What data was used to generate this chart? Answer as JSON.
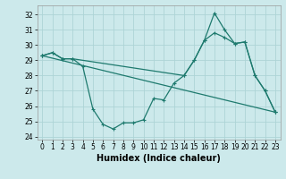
{
  "xlabel": "Humidex (Indice chaleur)",
  "bg_color": "#cce9eb",
  "grid_color": "#add4d6",
  "line_color": "#1e7a6e",
  "xlim": [
    -0.5,
    23.5
  ],
  "ylim": [
    23.8,
    32.6
  ],
  "yticks": [
    24,
    25,
    26,
    27,
    28,
    29,
    30,
    31,
    32
  ],
  "xticks": [
    0,
    1,
    2,
    3,
    4,
    5,
    6,
    7,
    8,
    9,
    10,
    11,
    12,
    13,
    14,
    15,
    16,
    17,
    18,
    19,
    20,
    21,
    22,
    23
  ],
  "series1_x": [
    0,
    1,
    2,
    3,
    4,
    5,
    6,
    7,
    8,
    9,
    10,
    11,
    12,
    13,
    14,
    15,
    16,
    17,
    18,
    19,
    20,
    21,
    22,
    23
  ],
  "series1_y": [
    29.3,
    29.5,
    29.1,
    29.1,
    28.6,
    25.8,
    24.8,
    24.5,
    24.9,
    24.9,
    25.1,
    26.5,
    26.4,
    27.5,
    28.0,
    29.0,
    30.3,
    30.8,
    30.5,
    30.1,
    30.2,
    28.0,
    27.0,
    25.6
  ],
  "series2_x": [
    0,
    1,
    2,
    3,
    14,
    15,
    16,
    17,
    18,
    19,
    20,
    21,
    22,
    23
  ],
  "series2_y": [
    29.3,
    29.5,
    29.1,
    29.1,
    28.0,
    29.0,
    30.3,
    32.1,
    31.0,
    30.1,
    30.2,
    28.0,
    27.0,
    25.6
  ],
  "series3_x": [
    0,
    23
  ],
  "series3_y": [
    29.3,
    25.6
  ]
}
